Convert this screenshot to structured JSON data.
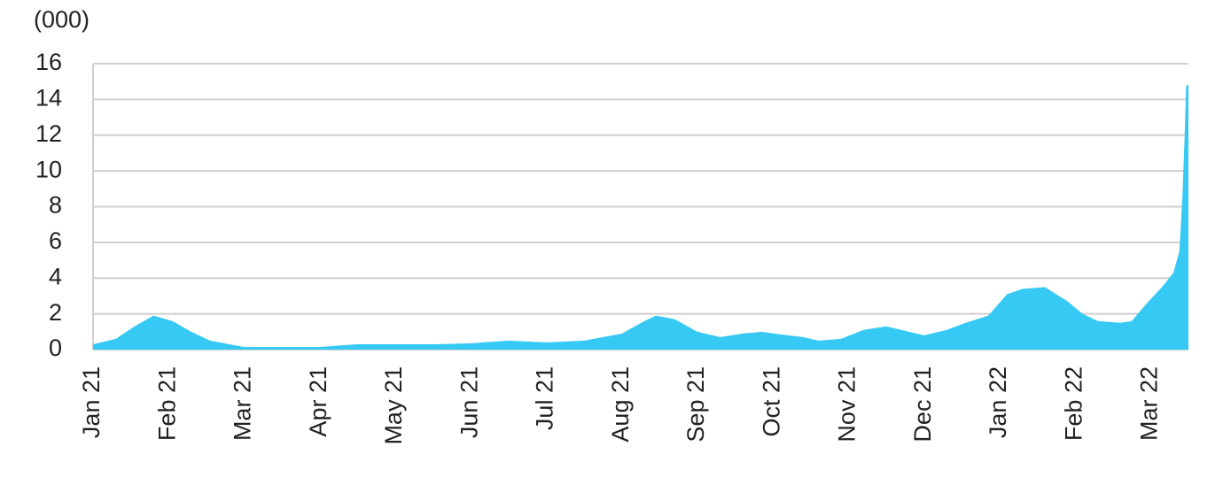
{
  "chart_data": {
    "type": "area",
    "title": "(000)",
    "color": "#36c9f4",
    "grid": true,
    "x": [
      0,
      0.3,
      0.55,
      0.8,
      1.05,
      1.3,
      1.55,
      1.8,
      2.0,
      2.5,
      3.0,
      3.5,
      4.0,
      4.5,
      5.0,
      5.5,
      6.0,
      6.5,
      7.0,
      7.3,
      7.45,
      7.7,
      8.0,
      8.3,
      8.6,
      8.85,
      9.1,
      9.4,
      9.6,
      9.9,
      10.2,
      10.5,
      10.8,
      11.0,
      11.3,
      11.55,
      11.85,
      12.1,
      12.3,
      12.6,
      12.9,
      13.1,
      13.3,
      13.6,
      13.75,
      13.95,
      14.15,
      14.3,
      14.38,
      14.42,
      14.45,
      14.47,
      14.5
    ],
    "values": [
      0.3,
      0.6,
      1.3,
      1.9,
      1.6,
      1.0,
      0.5,
      0.3,
      0.15,
      0.15,
      0.15,
      0.3,
      0.3,
      0.3,
      0.35,
      0.5,
      0.4,
      0.5,
      0.9,
      1.6,
      1.9,
      1.7,
      1.0,
      0.7,
      0.9,
      1.0,
      0.85,
      0.7,
      0.5,
      0.6,
      1.1,
      1.3,
      1.0,
      0.8,
      1.1,
      1.5,
      1.9,
      3.1,
      3.4,
      3.5,
      2.7,
      2.0,
      1.6,
      1.5,
      1.6,
      2.6,
      3.5,
      4.3,
      5.5,
      8.5,
      12,
      14.8,
      14.8
    ],
    "xlim": [
      0,
      14.5
    ],
    "xticks": [
      {
        "value": 0,
        "label": "Jan 21"
      },
      {
        "value": 1,
        "label": "Feb 21"
      },
      {
        "value": 2,
        "label": "Mar 21"
      },
      {
        "value": 3,
        "label": "Apr 21"
      },
      {
        "value": 4,
        "label": "May 21"
      },
      {
        "value": 5,
        "label": "Jun 21"
      },
      {
        "value": 6,
        "label": "Jul 21"
      },
      {
        "value": 7,
        "label": "Aug 21"
      },
      {
        "value": 8,
        "label": "Sep 21"
      },
      {
        "value": 9,
        "label": "Oct 21"
      },
      {
        "value": 10,
        "label": "Nov 21"
      },
      {
        "value": 11,
        "label": "Dec 21"
      },
      {
        "value": 12,
        "label": "Jan 22"
      },
      {
        "value": 13,
        "label": "Feb 22"
      },
      {
        "value": 14,
        "label": "Mar 22"
      }
    ],
    "ylim": [
      0,
      16
    ],
    "yticks": [
      0,
      2,
      4,
      6,
      8,
      10,
      12,
      14,
      16
    ]
  }
}
